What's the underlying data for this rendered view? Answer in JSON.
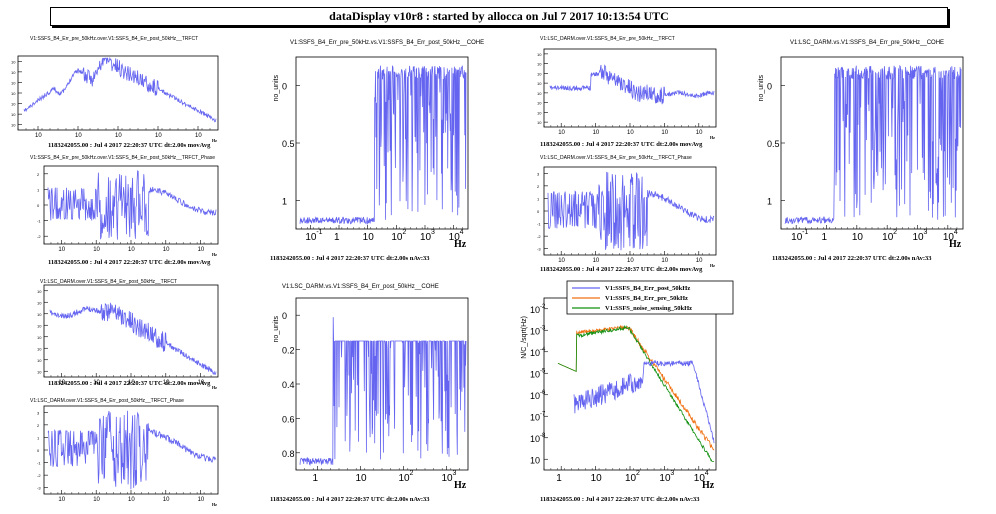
{
  "app_title": "dataDisplay v10r8 : started by allocca on Jul  7 2017 10:13:54 UTC",
  "colors": {
    "trace_blue": "#6464f0",
    "trace_orange": "#f07010",
    "trace_green": "#109010"
  },
  "chart_data": [
    {
      "id": "p1",
      "type": "line",
      "title": "V1:SSFS_B4_Err_pre_50kHz.over.V1:SSFS_B4_Err_post_50kHz__TRFCT",
      "footer": "1183242055.00 : Jul  4 2017 22:20:37 UTC dt:2.00s movAvg",
      "xlabel": "Hz",
      "log_x": true,
      "log_y": true,
      "x_ticks": [
        "10",
        "10",
        "10",
        "10",
        "10"
      ],
      "y_ticks": [
        "10",
        "10",
        "10",
        "10",
        "10",
        "10",
        "10"
      ]
    },
    {
      "id": "p2",
      "type": "line",
      "title": "V1:SSFS_B4_Err_pre_50kHz.over.V1:SSFS_B4_Err_post_50kHz__TRFCT_Phase",
      "footer": "1183242055.00 : Jul  4 2017 22:20:37 UTC dt:2.00s movAvg",
      "xlabel": "Hz",
      "log_x": true,
      "x_ticks": [
        "10",
        "10",
        "10",
        "10",
        "10"
      ],
      "y_ticks": [
        "2",
        "1",
        "0",
        "-1",
        "-2"
      ]
    },
    {
      "id": "p3",
      "type": "line",
      "title": "V1:SSFS_B4_Err_pre_50kHz.vs.V1:SSFS_B4_Err_post_50kHz__COHE",
      "footer": "1183242055.00 : Jul  4 2017 22:20:37 UTC dt:2.00s nAv:33",
      "xlabel": "Hz",
      "ylabel": "no_units",
      "log_x": true,
      "y_ticks": [
        "0",
        "0.5",
        "1"
      ],
      "x_ticks": [
        "10",
        "1",
        "10",
        "10",
        "10",
        "10"
      ],
      "x_exp": [
        "-1",
        "",
        "",
        "2",
        "3",
        "4"
      ]
    },
    {
      "id": "p4",
      "type": "line",
      "title": "V1:LSC_DARM.over.V1:SSFS_B4_Err_pre_50kHz__TRFCT",
      "footer": "1183242055.00 : Jul  4 2017 22:20:37 UTC dt:2.00s movAvg",
      "xlabel": "Hz",
      "log_x": true,
      "log_y": true,
      "x_ticks": [
        "10",
        "10",
        "10",
        "10",
        "10"
      ],
      "y_ticks": [
        "10",
        "10",
        "10",
        "10",
        "10",
        "10",
        "10",
        "10"
      ]
    },
    {
      "id": "p5",
      "type": "line",
      "title": "V1:LSC_DARM.over.V1:SSFS_B4_Err_pre_50kHz__TRFCT_Phase",
      "footer": "1183242055.00 : Jul  4 2017 22:20:37 UTC dt:2.00s movAvg",
      "xlabel": "Hz",
      "log_x": true,
      "x_ticks": [
        "10",
        "10",
        "10",
        "10",
        "10"
      ],
      "y_ticks": [
        "3",
        "2",
        "1",
        "0",
        "-1",
        "-2",
        "-3"
      ]
    },
    {
      "id": "p6",
      "type": "line",
      "title": "V1:LSC_DARM.vs.V1:SSFS_B4_Err_pre_50kHz__COHE",
      "footer": "1183242055.00 : Jul  4 2017 22:20:37 UTC dt:2.00s nAv:33",
      "xlabel": "Hz",
      "ylabel": "no_units",
      "log_x": true,
      "y_ticks": [
        "0",
        "0.5",
        "1"
      ],
      "x_ticks": [
        "10",
        "1",
        "10",
        "10",
        "10",
        "10"
      ],
      "x_exp": [
        "-1",
        "",
        "",
        "2",
        "3",
        "4"
      ]
    },
    {
      "id": "p7",
      "type": "line",
      "title": "V1:LSC_DARM.over.V1:SSFS_B4_Err_post_50kHz__TRFCT",
      "footer": "1183242055.00 : Jul  4 2017 22:20:37 UTC dt:2.00s movAvg",
      "xlabel": "Hz",
      "log_x": true,
      "log_y": true,
      "x_ticks": [
        "10",
        "10",
        "10",
        "10",
        "10"
      ],
      "y_ticks": [
        "10",
        "10",
        "10",
        "10",
        "10",
        "10",
        "10",
        "10"
      ]
    },
    {
      "id": "p8",
      "type": "line",
      "title": "V1:LSC_DARM.over.V1:SSFS_B4_Err_post_50kHz__TRFCT_Phase",
      "footer": "",
      "xlabel": "Hz",
      "log_x": true,
      "x_ticks": [
        "10",
        "10",
        "10",
        "10",
        "10"
      ],
      "y_ticks": [
        "3",
        "2",
        "1",
        "0",
        "-1",
        "-2",
        "-3"
      ]
    },
    {
      "id": "p9",
      "type": "line",
      "title": "V1:LSC_DARM.vs.V1:SSFS_B4_Err_post_50kHz__COHE",
      "footer": "1183242055.00 : Jul  4 2017 22:20:37 UTC dt:2.00s nAv:33",
      "xlabel": "Hz",
      "ylabel": "no_units",
      "log_x": true,
      "y_ticks": [
        "0",
        "0.2",
        "0.4",
        "0.6",
        "0.8"
      ],
      "x_ticks": [
        "1",
        "10",
        "10",
        "10"
      ],
      "x_exp": [
        "",
        "",
        "2",
        "3"
      ]
    },
    {
      "id": "p10",
      "type": "line",
      "title": "",
      "footer": "1183242055.00 : Jul  4 2017 22:20:37 UTC dt:2.00s nAv:33",
      "xlabel": "Hz",
      "ylabel": "N/C_/sqrt(Hz)",
      "log_x": true,
      "log_y": true,
      "y_ticks": [
        "10",
        "10",
        "10",
        "10",
        "10",
        "10",
        "10",
        "10"
      ],
      "y_exp": [
        "-2",
        "-3",
        "-4",
        "-5",
        "-6",
        "-7",
        "-8",
        ""
      ],
      "x_ticks": [
        "1",
        "10",
        "10",
        "10",
        "10"
      ],
      "x_exp": [
        "",
        "",
        "2",
        "3",
        "4"
      ],
      "legend": {
        "placement": "top",
        "entries": [
          {
            "name": "V1:SSFS_B4_Err_post_50kHz",
            "color": "#6464f0"
          },
          {
            "name": "V1:SSFS_B4_Err_pre_50kHz",
            "color": "#f07010"
          },
          {
            "name": "V1:SSFS_noise_sensing_50kHz",
            "color": "#109010"
          }
        ]
      }
    }
  ]
}
